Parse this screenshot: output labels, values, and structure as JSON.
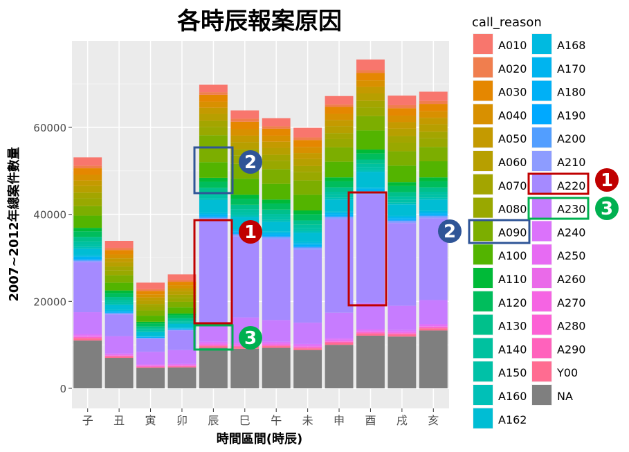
{
  "chart_data": {
    "type": "bar",
    "stacked": true,
    "title": "各時辰報案原因",
    "xlabel": "時間區間(時辰)",
    "ylabel": "2007~2012年總案件數量",
    "ylim": [
      0,
      78000
    ],
    "yticks": [
      0,
      20000,
      40000,
      60000
    ],
    "ytick_labels": [
      "0",
      "20000",
      "40000",
      "60000"
    ],
    "grid": true,
    "legend_title": "call_reason",
    "legend_position": "right",
    "categories": [
      "子",
      "丑",
      "寅",
      "卯",
      "辰",
      "巳",
      "午",
      "未",
      "申",
      "酉",
      "戌",
      "亥"
    ],
    "series": [
      {
        "name": "NA",
        "color": "#7f7f7f",
        "values": [
          11000,
          7000,
          4700,
          4800,
          9300,
          9100,
          9300,
          8800,
          10000,
          12100,
          11900,
          13300
        ]
      },
      {
        "name": "Y00",
        "color": "#ff6c91",
        "values": [
          500,
          300,
          200,
          200,
          400,
          400,
          400,
          400,
          500,
          500,
          500,
          500
        ]
      },
      {
        "name": "A290",
        "color": "#ff62bc",
        "values": [
          200,
          100,
          100,
          100,
          200,
          200,
          200,
          200,
          200,
          200,
          200,
          200
        ]
      },
      {
        "name": "A280",
        "color": "#fc61d5",
        "values": [
          100,
          100,
          100,
          100,
          100,
          100,
          100,
          100,
          100,
          100,
          100,
          100
        ]
      },
      {
        "name": "A270",
        "color": "#f564e3",
        "values": [
          100,
          100,
          100,
          100,
          100,
          100,
          100,
          100,
          100,
          100,
          100,
          100
        ]
      },
      {
        "name": "A260",
        "color": "#ea6ae9",
        "values": [
          100,
          100,
          100,
          100,
          100,
          100,
          100,
          100,
          100,
          100,
          100,
          100
        ]
      },
      {
        "name": "A250",
        "color": "#e76bf3",
        "values": [
          200,
          100,
          100,
          100,
          200,
          200,
          200,
          200,
          200,
          200,
          200,
          200
        ]
      },
      {
        "name": "A240",
        "color": "#db72fb",
        "values": [
          300,
          200,
          100,
          100,
          300,
          300,
          300,
          300,
          300,
          300,
          300,
          300
        ]
      },
      {
        "name": "A230",
        "color": "#c77cff",
        "values": [
          5000,
          4000,
          2900,
          3200,
          4200,
          5800,
          5000,
          4900,
          5900,
          6000,
          5600,
          5500
        ]
      },
      {
        "name": "A220",
        "color": "#a58aff",
        "values": [
          11500,
          5000,
          3000,
          4500,
          23800,
          18600,
          18600,
          16800,
          21500,
          24900,
          19000,
          18800
        ]
      },
      {
        "name": "A210",
        "color": "#8d9cff",
        "values": [
          300,
          200,
          100,
          100,
          400,
          400,
          400,
          400,
          400,
          400,
          400,
          400
        ]
      },
      {
        "name": "A200",
        "color": "#529eff",
        "values": [
          200,
          100,
          100,
          100,
          200,
          200,
          200,
          200,
          200,
          200,
          200,
          200
        ]
      },
      {
        "name": "A190",
        "color": "#00a9ff",
        "values": [
          200,
          100,
          100,
          100,
          200,
          200,
          200,
          200,
          200,
          200,
          200,
          200
        ]
      },
      {
        "name": "A180",
        "color": "#00b0f6",
        "values": [
          300,
          200,
          100,
          100,
          300,
          300,
          300,
          300,
          300,
          300,
          300,
          300
        ]
      },
      {
        "name": "A170",
        "color": "#00b4ef",
        "values": [
          300,
          200,
          100,
          100,
          300,
          300,
          300,
          300,
          300,
          300,
          300,
          300
        ]
      },
      {
        "name": "A168",
        "color": "#00bae0",
        "values": [
          300,
          200,
          100,
          100,
          300,
          300,
          300,
          300,
          300,
          300,
          300,
          300
        ]
      },
      {
        "name": "A162",
        "color": "#00bdd4",
        "values": [
          1500,
          1100,
          900,
          900,
          2900,
          2800,
          2300,
          2200,
          2800,
          3600,
          2600,
          2600
        ]
      },
      {
        "name": "A160",
        "color": "#00c0b7",
        "values": [
          400,
          300,
          200,
          200,
          400,
          400,
          400,
          400,
          400,
          400,
          400,
          400
        ]
      },
      {
        "name": "A150",
        "color": "#00c1a7",
        "values": [
          600,
          400,
          300,
          300,
          700,
          700,
          700,
          700,
          700,
          700,
          700,
          700
        ]
      },
      {
        "name": "A140",
        "color": "#00c19f",
        "values": [
          700,
          500,
          300,
          300,
          700,
          700,
          700,
          700,
          700,
          700,
          700,
          700
        ]
      },
      {
        "name": "A130",
        "color": "#00c08b",
        "values": [
          1000,
          700,
          500,
          500,
          1000,
          1000,
          1000,
          1000,
          1000,
          1000,
          1000,
          1000
        ]
      },
      {
        "name": "A120",
        "color": "#00bd5c",
        "values": [
          1300,
          900,
          700,
          700,
          1400,
          1400,
          1400,
          1400,
          1400,
          1400,
          1400,
          1400
        ]
      },
      {
        "name": "A110",
        "color": "#00ba38",
        "values": [
          800,
          600,
          400,
          400,
          900,
          900,
          900,
          900,
          900,
          900,
          900,
          900
        ]
      },
      {
        "name": "A100",
        "color": "#53b400",
        "values": [
          2800,
          1800,
          1400,
          1400,
          3600,
          3700,
          3600,
          3600,
          3600,
          4400,
          3800,
          3700
        ]
      },
      {
        "name": "A090",
        "color": "#7cae00",
        "values": [
          2200,
          1700,
          1200,
          1300,
          6200,
          3400,
          3400,
          3300,
          3300,
          3300,
          3300,
          3300
        ]
      },
      {
        "name": "A080",
        "color": "#99a800",
        "values": [
          1800,
          1100,
          800,
          900,
          1900,
          2000,
          1900,
          1900,
          1900,
          2000,
          2000,
          2000
        ]
      },
      {
        "name": "A070",
        "color": "#a3a500",
        "values": [
          1300,
          900,
          700,
          700,
          1400,
          1400,
          1400,
          1400,
          1400,
          1500,
          1500,
          1500
        ]
      },
      {
        "name": "A060",
        "color": "#b79f00",
        "values": [
          1500,
          1000,
          800,
          800,
          1600,
          1600,
          1600,
          1600,
          1600,
          1700,
          1700,
          1700
        ]
      },
      {
        "name": "A050",
        "color": "#c49a00",
        "values": [
          1300,
          900,
          700,
          700,
          1400,
          1500,
          1400,
          1400,
          1400,
          1500,
          1500,
          1500
        ]
      },
      {
        "name": "A040",
        "color": "#d89000",
        "values": [
          1300,
          900,
          700,
          700,
          1400,
          1500,
          1400,
          1400,
          1400,
          1500,
          1500,
          1500
        ]
      },
      {
        "name": "A030",
        "color": "#e58700",
        "values": [
          1500,
          1000,
          800,
          800,
          1600,
          1700,
          1600,
          1600,
          1600,
          1700,
          1700,
          1700
        ]
      },
      {
        "name": "A020",
        "color": "#f07e4e",
        "values": [
          600,
          500,
          400,
          400,
          600,
          700,
          600,
          600,
          600,
          700,
          700,
          700
        ]
      },
      {
        "name": "A010",
        "color": "#f8766d",
        "values": [
          1900,
          1600,
          1500,
          1300,
          1700,
          1900,
          1800,
          2200,
          1900,
          2400,
          2200,
          2100
        ]
      }
    ],
    "legend_column1": [
      "A010",
      "A020",
      "A030",
      "A040",
      "A050",
      "A060",
      "A070",
      "A080",
      "A090",
      "A100",
      "A110",
      "A120",
      "A130",
      "A140",
      "A150",
      "A160",
      "A162"
    ],
    "legend_column2": [
      "A168",
      "A170",
      "A180",
      "A190",
      "A200",
      "A210",
      "A220",
      "A230",
      "A240",
      "A250",
      "A260",
      "A270",
      "A280",
      "A290",
      "Y00",
      "NA"
    ]
  },
  "annotations": {
    "markers": [
      {
        "label": "1",
        "color": "#c00000"
      },
      {
        "label": "2",
        "color": "#2f5597"
      },
      {
        "label": "3",
        "color": "#00b050"
      }
    ]
  }
}
